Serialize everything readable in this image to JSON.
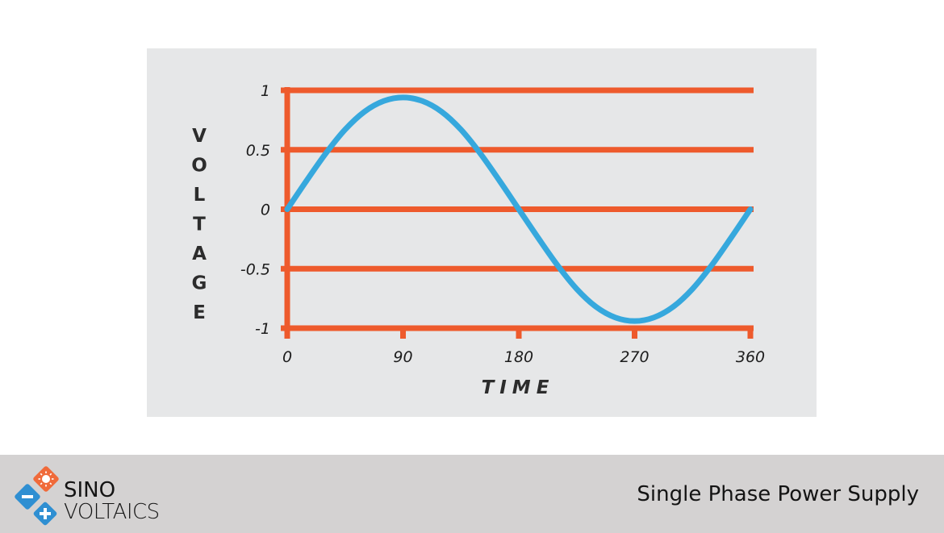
{
  "colors": {
    "grid": "#ee5a2c",
    "curve": "#36a8dd",
    "panel": "#e6e7e8",
    "footer": "#d4d2d2",
    "logo_orange": "#f06a3a",
    "logo_blue": "#2f8fd2"
  },
  "chart_data": {
    "type": "line",
    "title": "",
    "xlabel": "TIME",
    "ylabel": "VOLTAGE",
    "x_ticks": [
      0,
      90,
      180,
      270,
      360
    ],
    "x_tick_labels": [
      "0",
      "90",
      "180",
      "270",
      "360"
    ],
    "y_ticks": [
      1,
      0.5,
      0,
      -0.5,
      -1
    ],
    "y_tick_labels": [
      "1",
      "0.5",
      "0",
      "-0.5",
      "-1"
    ],
    "xlim": [
      0,
      360
    ],
    "ylim": [
      -1,
      1
    ],
    "grid": true,
    "series": [
      {
        "x": [
          0,
          15,
          30,
          45,
          60,
          75,
          90,
          105,
          120,
          135,
          150,
          165,
          180,
          195,
          210,
          225,
          240,
          255,
          270,
          285,
          300,
          315,
          330,
          345,
          360
        ],
        "values": [
          0,
          0.24,
          0.47,
          0.67,
          0.82,
          0.91,
          0.94,
          0.91,
          0.82,
          0.67,
          0.47,
          0.24,
          0,
          -0.24,
          -0.47,
          -0.67,
          -0.82,
          -0.91,
          -0.94,
          -0.91,
          -0.82,
          -0.67,
          -0.47,
          -0.24,
          0
        ]
      }
    ]
  },
  "footer": {
    "logo_top": "SINO",
    "logo_bottom": "VOLTAICS",
    "title": "Single Phase Power Supply"
  },
  "icons": [
    "sun-icon",
    "minus-icon",
    "plus-icon"
  ]
}
